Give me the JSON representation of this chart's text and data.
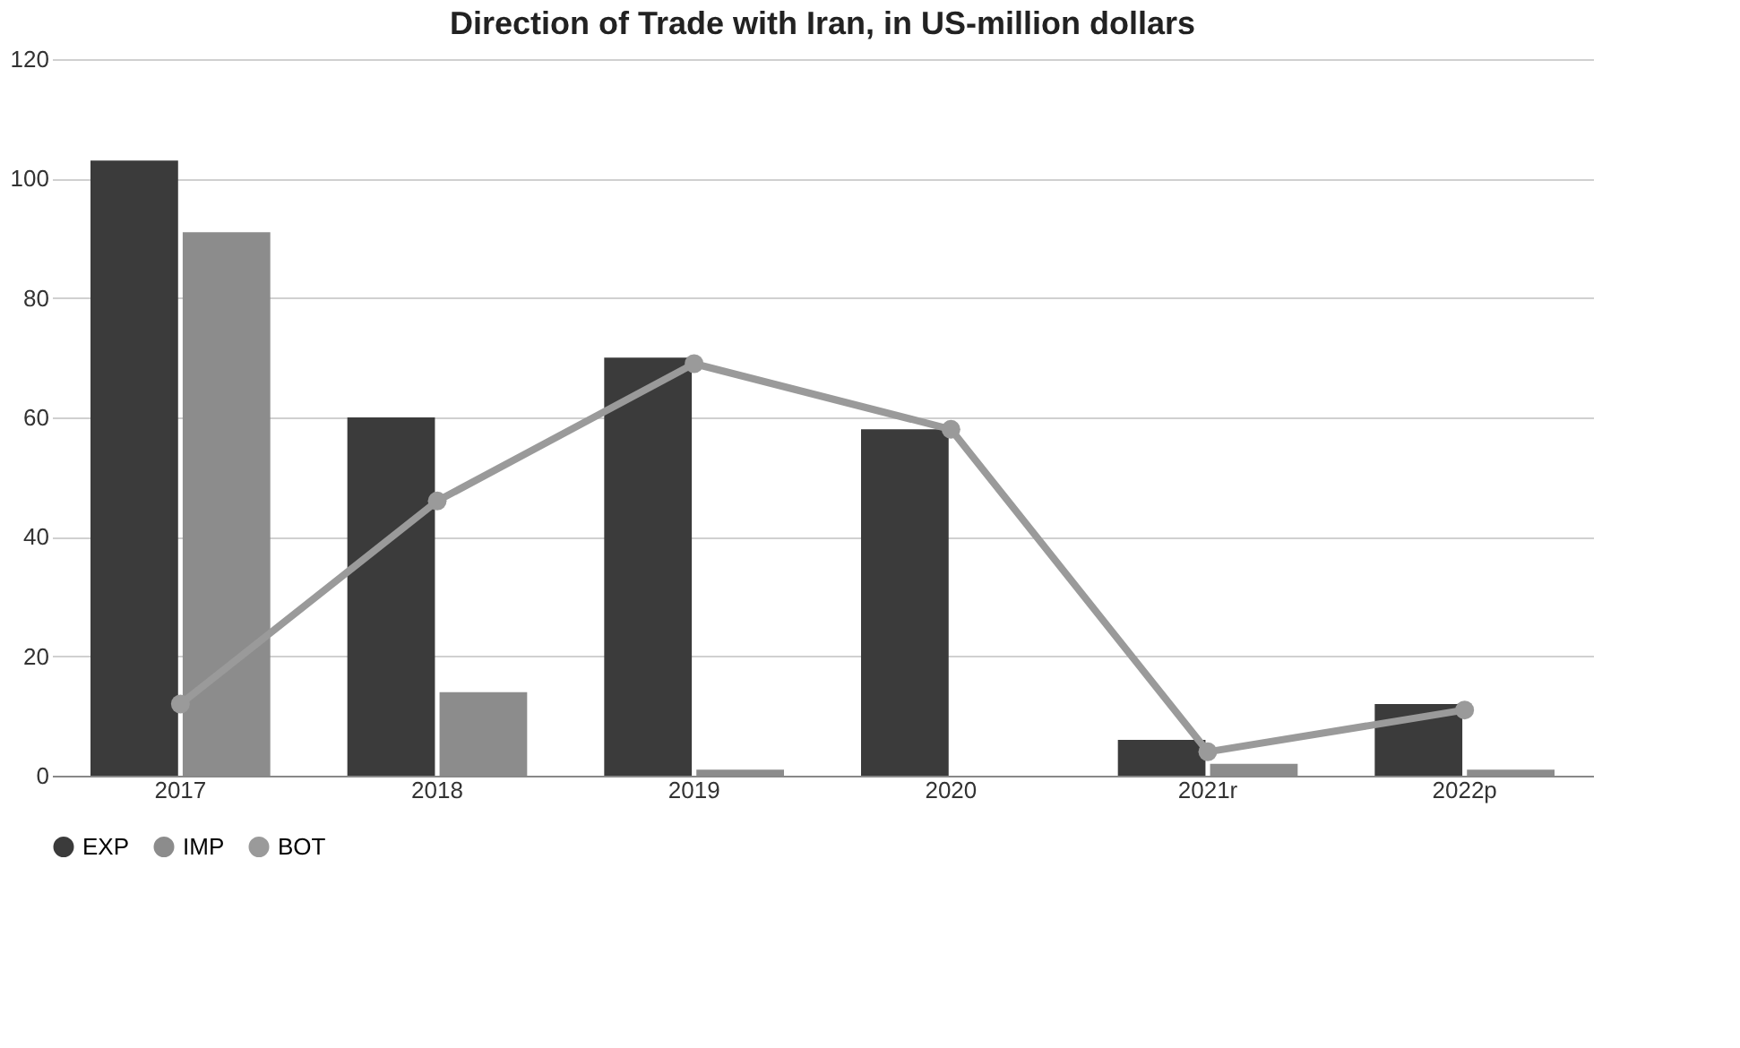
{
  "chart_data": {
    "type": "bar",
    "title": "Direction of Trade with Iran, in US-million dollars",
    "categories": [
      "2017",
      "2018",
      "2019",
      "2020",
      "2021r",
      "2022p"
    ],
    "series": [
      {
        "name": "EXP",
        "color": "#3b3b3b",
        "values": [
          103,
          60,
          70,
          58,
          6,
          12
        ]
      },
      {
        "name": "IMP",
        "color": "#8c8c8c",
        "values": [
          91,
          14,
          1,
          0,
          2,
          1
        ]
      },
      {
        "name": "BOT",
        "color": "#9a9a9a",
        "type": "line",
        "marker": "circle",
        "values": [
          12,
          46,
          69,
          58,
          4,
          11
        ]
      }
    ],
    "ylim": [
      0,
      120
    ],
    "yticks": [
      0,
      20,
      40,
      60,
      80,
      100,
      120
    ],
    "grid": "y",
    "legend": "bottom"
  }
}
